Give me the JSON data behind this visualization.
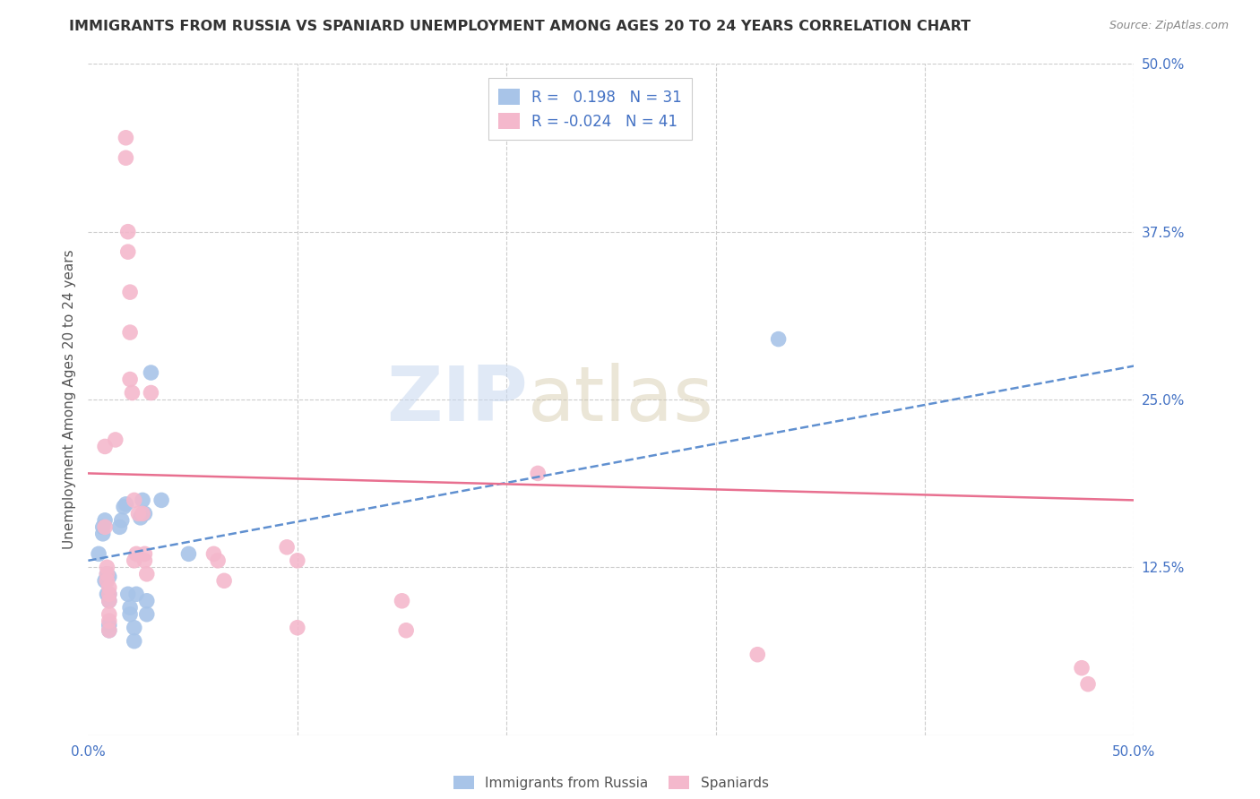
{
  "title": "IMMIGRANTS FROM RUSSIA VS SPANIARD UNEMPLOYMENT AMONG AGES 20 TO 24 YEARS CORRELATION CHART",
  "source": "Source: ZipAtlas.com",
  "ylabel": "Unemployment Among Ages 20 to 24 years",
  "xlim": [
    0,
    0.5
  ],
  "ylim": [
    0,
    0.5
  ],
  "yticks": [
    0.0,
    0.125,
    0.25,
    0.375,
    0.5
  ],
  "ytick_labels": [
    "",
    "12.5%",
    "25.0%",
    "37.5%",
    "50.0%"
  ],
  "xticks": [
    0.0,
    0.1,
    0.2,
    0.3,
    0.4,
    0.5
  ],
  "xtick_labels": [
    "0.0%",
    "",
    "",
    "",
    "",
    "50.0%"
  ],
  "legend_r_blue": "0.198",
  "legend_n_blue": "31",
  "legend_r_pink": "-0.024",
  "legend_n_pink": "41",
  "blue_color": "#a8c4e8",
  "pink_color": "#f4b8cc",
  "blue_line_color": "#6090d0",
  "pink_line_color": "#e87090",
  "blue_points": [
    [
      0.005,
      0.135
    ],
    [
      0.007,
      0.155
    ],
    [
      0.007,
      0.15
    ],
    [
      0.008,
      0.16
    ],
    [
      0.008,
      0.115
    ],
    [
      0.009,
      0.105
    ],
    [
      0.009,
      0.12
    ],
    [
      0.01,
      0.118
    ],
    [
      0.01,
      0.1
    ],
    [
      0.01,
      0.105
    ],
    [
      0.01,
      0.082
    ],
    [
      0.01,
      0.078
    ],
    [
      0.015,
      0.155
    ],
    [
      0.016,
      0.16
    ],
    [
      0.017,
      0.17
    ],
    [
      0.018,
      0.172
    ],
    [
      0.019,
      0.105
    ],
    [
      0.02,
      0.095
    ],
    [
      0.02,
      0.09
    ],
    [
      0.022,
      0.08
    ],
    [
      0.022,
      0.07
    ],
    [
      0.023,
      0.105
    ],
    [
      0.025,
      0.162
    ],
    [
      0.026,
      0.175
    ],
    [
      0.027,
      0.165
    ],
    [
      0.028,
      0.1
    ],
    [
      0.028,
      0.09
    ],
    [
      0.03,
      0.27
    ],
    [
      0.035,
      0.175
    ],
    [
      0.048,
      0.135
    ],
    [
      0.33,
      0.295
    ]
  ],
  "pink_points": [
    [
      0.008,
      0.215
    ],
    [
      0.008,
      0.155
    ],
    [
      0.009,
      0.125
    ],
    [
      0.009,
      0.12
    ],
    [
      0.009,
      0.115
    ],
    [
      0.01,
      0.11
    ],
    [
      0.01,
      0.105
    ],
    [
      0.01,
      0.1
    ],
    [
      0.01,
      0.09
    ],
    [
      0.01,
      0.085
    ],
    [
      0.01,
      0.078
    ],
    [
      0.013,
      0.22
    ],
    [
      0.018,
      0.445
    ],
    [
      0.018,
      0.43
    ],
    [
      0.019,
      0.375
    ],
    [
      0.019,
      0.36
    ],
    [
      0.02,
      0.33
    ],
    [
      0.02,
      0.3
    ],
    [
      0.02,
      0.265
    ],
    [
      0.021,
      0.255
    ],
    [
      0.022,
      0.175
    ],
    [
      0.022,
      0.13
    ],
    [
      0.023,
      0.135
    ],
    [
      0.024,
      0.165
    ],
    [
      0.026,
      0.165
    ],
    [
      0.027,
      0.135
    ],
    [
      0.027,
      0.13
    ],
    [
      0.028,
      0.12
    ],
    [
      0.03,
      0.255
    ],
    [
      0.06,
      0.135
    ],
    [
      0.062,
      0.13
    ],
    [
      0.065,
      0.115
    ],
    [
      0.095,
      0.14
    ],
    [
      0.1,
      0.13
    ],
    [
      0.1,
      0.08
    ],
    [
      0.15,
      0.1
    ],
    [
      0.152,
      0.078
    ],
    [
      0.215,
      0.195
    ],
    [
      0.32,
      0.06
    ],
    [
      0.475,
      0.05
    ],
    [
      0.478,
      0.038
    ]
  ],
  "blue_trend_x": [
    0.0,
    0.5
  ],
  "blue_trend_y": [
    0.13,
    0.275
  ],
  "pink_trend_x": [
    0.0,
    0.5
  ],
  "pink_trend_y": [
    0.195,
    0.175
  ],
  "background_color": "#ffffff",
  "grid_color": "#cccccc",
  "title_fontsize": 11.5,
  "axis_fontsize": 11,
  "tick_fontsize": 11,
  "source_fontsize": 9
}
